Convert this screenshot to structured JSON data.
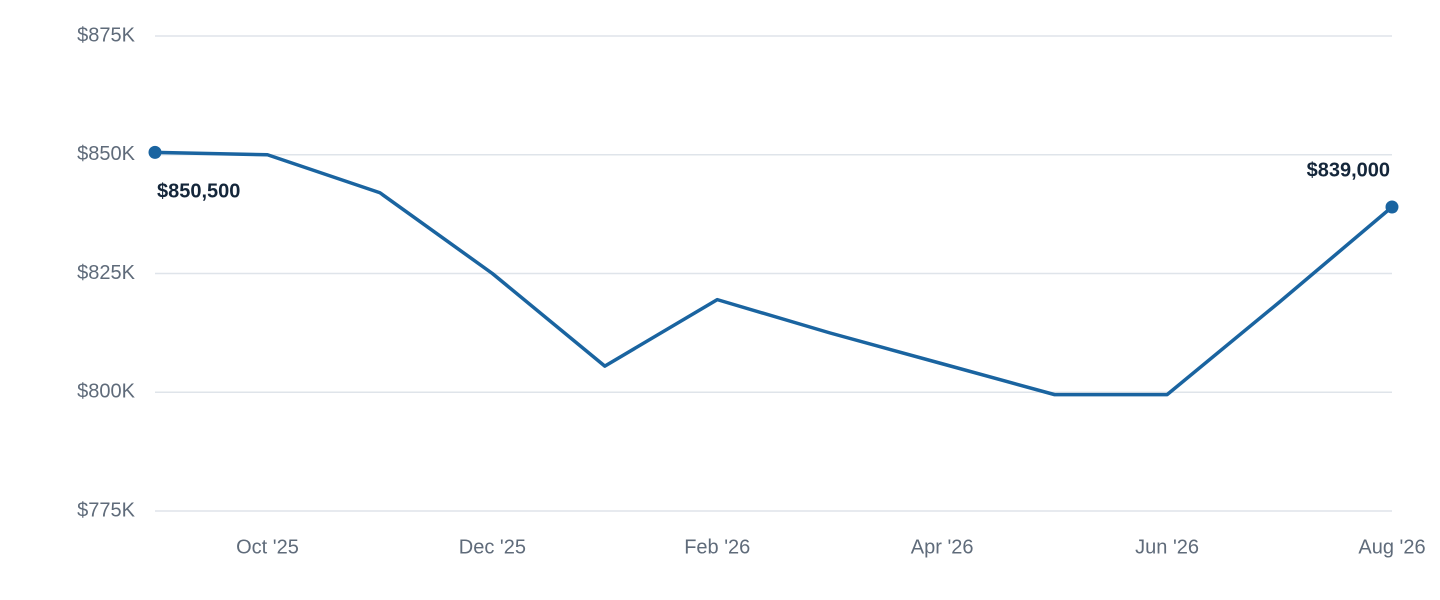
{
  "chart_data": {
    "type": "line",
    "categories": [
      null,
      "Oct '25",
      null,
      "Dec '25",
      null,
      "Feb '26",
      null,
      "Apr '26",
      null,
      "Jun '26",
      null,
      "Aug '26"
    ],
    "series": [
      {
        "color": "#1a64a0",
        "values": [
          850500,
          850000,
          842000,
          825000,
          805500,
          819500,
          812500,
          806000,
          799500,
          799500,
          819000,
          839000
        ],
        "value_labels": [
          "$850,500",
          null,
          null,
          null,
          null,
          null,
          null,
          null,
          null,
          null,
          null,
          "$839,000"
        ]
      }
    ],
    "ylim": [
      775000,
      875000
    ],
    "yticks": [
      {
        "value": 775000,
        "label": "$775K"
      },
      {
        "value": 800000,
        "label": "$800K"
      },
      {
        "value": 825000,
        "label": "$825K"
      },
      {
        "value": 850000,
        "label": "$850K"
      },
      {
        "value": 875000,
        "label": "$875K"
      }
    ],
    "grid": true
  }
}
